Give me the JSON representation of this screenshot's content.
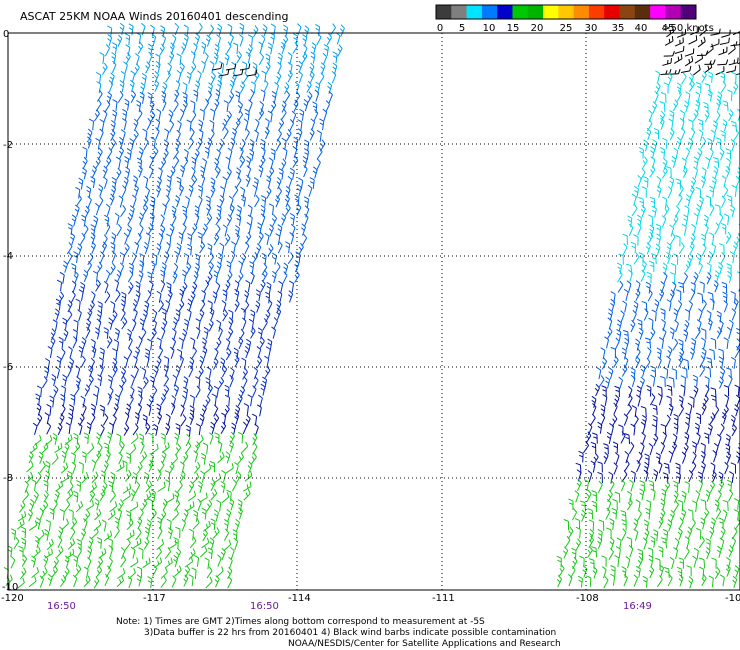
{
  "chart_data": {
    "type": "scatter",
    "title": "ASCAT 25KM NOAA Winds 20160401 descending",
    "xlabel": "",
    "ylabel": "",
    "xlim": [
      -120,
      -108
    ],
    "ylim": [
      -10,
      0
    ],
    "grid": true,
    "x_ticks": [
      "-120",
      "-117",
      "-114",
      "-111",
      "-108",
      "-10"
    ],
    "y_ticks": [
      "0",
      "-2",
      "-4",
      "-6",
      "-8",
      "-10"
    ],
    "pass_times": [
      "16:50",
      "16:50",
      "16:49"
    ],
    "legend": {
      "labels": [
        "0",
        "5",
        "10",
        "15",
        "20",
        "25",
        "30",
        "35",
        "40",
        "45",
        ">50 knots"
      ],
      "colors": [
        "#3c3c3c",
        "#7f7f7f",
        "#00e5ff",
        "#007bff",
        "#0000cc",
        "#00c800",
        "#00b400",
        "#ffff00",
        "#ffc800",
        "#ff8c00",
        "#ff3c00",
        "#e60000",
        "#8b4513",
        "#5a2d0c",
        "#ff00ff",
        "#b400b4",
        "#500078"
      ]
    },
    "series": [
      {
        "name": "",
        "swath": "west",
        "segments": [
          {
            "lat_range": [
              0,
              -1.2
            ],
            "speed_knots": "10-15",
            "color": "#00a0f0"
          },
          {
            "lat_range": [
              -1.2,
              -4.5
            ],
            "speed_knots": "10-15",
            "color": "#0060e8"
          },
          {
            "lat_range": [
              -4.5,
              -6.8
            ],
            "speed_knots": "10-15",
            "color": "#0030c8"
          },
          {
            "lat_range": [
              -6.8,
              -7.3
            ],
            "speed_knots": "10-15",
            "color": "#0010a0"
          },
          {
            "lat_range": [
              -7.3,
              -10
            ],
            "speed_knots": "15-20",
            "color": "#19c819"
          }
        ]
      },
      {
        "name": "",
        "swath": "east",
        "segments": [
          {
            "lat_range": [
              0,
              -0.8
            ],
            "speed_knots": "0-5",
            "color": "#000000"
          },
          {
            "lat_range": [
              -0.8,
              -4.5
            ],
            "speed_knots": "5-10",
            "color": "#00d8e8"
          },
          {
            "lat_range": [
              -4.5,
              -6.5
            ],
            "speed_knots": "10-15",
            "color": "#0060e8"
          },
          {
            "lat_range": [
              -6.5,
              -8.2
            ],
            "speed_knots": "10-15",
            "color": "#0010a0"
          },
          {
            "lat_range": [
              -8.2,
              -10
            ],
            "speed_knots": "15-20",
            "color": "#19c819"
          }
        ]
      }
    ]
  },
  "notes": {
    "line1": "Note: 1) Times are GMT 2)Times along bottom correspond to measurement at -5S",
    "line2": "3)Data buffer is 22 hrs from 20160401 4) Black wind barbs indicate possible contamination",
    "line3": "NOAA/NESDIS/Center for Satellite Applications and Research"
  }
}
